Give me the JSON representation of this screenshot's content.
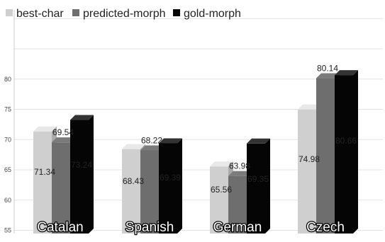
{
  "chart_data": {
    "type": "bar",
    "style": "3d",
    "categories": [
      "Catalan",
      "Spanish",
      "German",
      "Czech"
    ],
    "series": [
      {
        "name": "best-char",
        "color": "#cfcfcf",
        "values": [
          71.34,
          68.43,
          65.56,
          74.98
        ]
      },
      {
        "name": "predicted-morph",
        "color": "#6e6e6e",
        "values": [
          69.54,
          68.22,
          63.98,
          80.14
        ]
      },
      {
        "name": "gold-morph",
        "color": "#050505",
        "values": [
          73.24,
          69.39,
          69.35,
          80.66
        ]
      }
    ],
    "y_ticks": [
      "55",
      "60",
      "65",
      "70",
      "75",
      "80"
    ],
    "ylim": [
      50,
      82
    ],
    "grid": true,
    "legend_position": "top-left"
  }
}
